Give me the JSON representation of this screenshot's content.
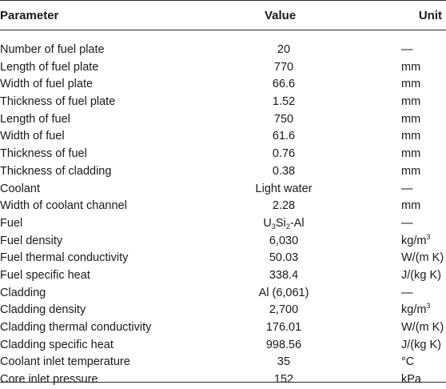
{
  "header": {
    "parameter": "Parameter",
    "value": "Value",
    "unit": "Unit"
  },
  "rows": [
    {
      "parameter": "Number of fuel plate",
      "value": "20",
      "unit": "—"
    },
    {
      "parameter": "Length of fuel plate",
      "value": "770",
      "unit": "mm"
    },
    {
      "parameter": "Width of fuel plate",
      "value": "66.6",
      "unit": "mm"
    },
    {
      "parameter": "Thickness of fuel plate",
      "value": "1.52",
      "unit": "mm"
    },
    {
      "parameter": "Length of fuel",
      "value": "750",
      "unit": "mm"
    },
    {
      "parameter": "Width of fuel",
      "value": "61.6",
      "unit": "mm"
    },
    {
      "parameter": "Thickness of fuel",
      "value": "0.76",
      "unit": "mm"
    },
    {
      "parameter": "Thickness of cladding",
      "value": "0.38",
      "unit": "mm"
    },
    {
      "parameter": "Coolant",
      "value": "Light water",
      "unit": "—"
    },
    {
      "parameter": "Width of coolant channel",
      "value": "2.28",
      "unit": "mm"
    },
    {
      "parameter": "Fuel",
      "value_parts": {
        "a": "U",
        "b": "3",
        "c": "Si",
        "d": "2",
        "e": "-Al"
      },
      "unit": "—"
    },
    {
      "parameter": "Fuel density",
      "value": "6,030",
      "unit_parts": {
        "base": "kg/m",
        "exp": "3"
      }
    },
    {
      "parameter": "Fuel thermal conductivity",
      "value": "50.03",
      "unit": "W/(m K)"
    },
    {
      "parameter": "Fuel specific heat",
      "value": "338.4",
      "unit": "J/(kg K)"
    },
    {
      "parameter": "Cladding",
      "value": "Al (6,061)",
      "unit": "—"
    },
    {
      "parameter": "Cladding density",
      "value": "2,700",
      "unit_parts": {
        "base": "kg/m",
        "exp": "3"
      }
    },
    {
      "parameter": "Cladding thermal conductivity",
      "value": "176.01",
      "unit": "W/(m K)"
    },
    {
      "parameter": "Cladding specific heat",
      "value": "998.56",
      "unit": "J/(kg K)"
    },
    {
      "parameter": "Coolant inlet temperature",
      "value": "35",
      "unit": "°C"
    },
    {
      "parameter": "Core inlet pressure",
      "value": "152",
      "unit": "kPa"
    }
  ]
}
